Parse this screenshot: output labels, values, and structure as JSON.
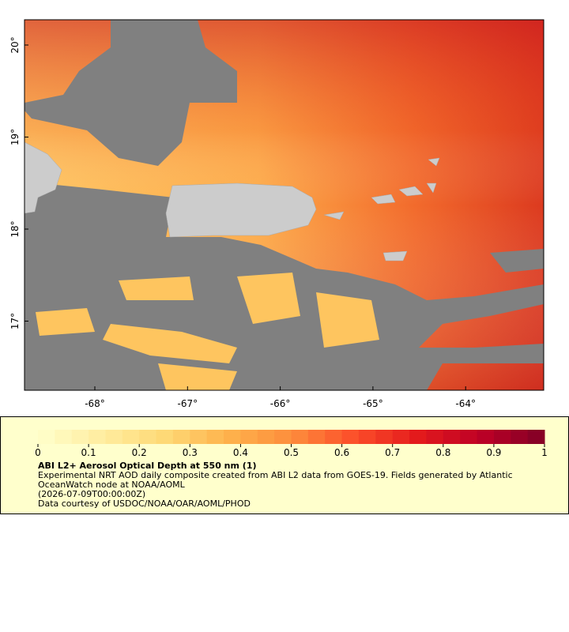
{
  "map": {
    "lat_ticks": [
      "20°",
      "19°",
      "18°",
      "17°"
    ],
    "lon_ticks": [
      "-68°",
      "-67°",
      "-66°",
      "-65°",
      "-64°"
    ]
  },
  "legend": {
    "ticks": [
      "0",
      "0.1",
      "0.2",
      "0.3",
      "0.4",
      "0.5",
      "0.6",
      "0.7",
      "0.8",
      "0.9",
      "1"
    ],
    "title": "ABI L2+ Aerosol Optical Depth at 550 nm (1)",
    "description": "Experimental NRT AOD daily composite created from ABI L2 data from GOES-19. Fields generated by Atlantic OceanWatch node at NOAA/AOML",
    "date": "(2026-07-09T00:00:00Z)",
    "credit": "Data courtesy of USDOC/NOAA/OAR/AOML/PHOD"
  }
}
